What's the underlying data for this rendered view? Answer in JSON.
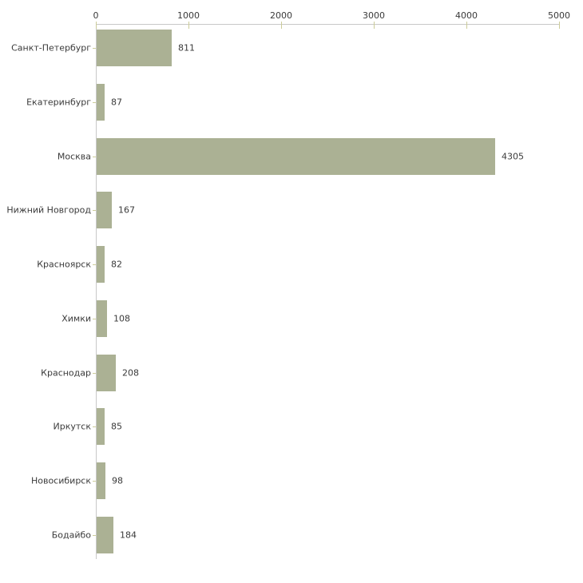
{
  "chart_data": {
    "type": "bar",
    "orientation": "horizontal",
    "title": "",
    "xlabel": "",
    "ylabel": "",
    "categories": [
      "Санкт-Петербург",
      "Екатеринбург",
      "Москва",
      "Нижний Новгород",
      "Красноярск",
      "Химки",
      "Краснодар",
      "Иркутск",
      "Новосибирск",
      "Бодайбо"
    ],
    "values": [
      811,
      87,
      4305,
      167,
      82,
      108,
      208,
      85,
      98,
      184
    ],
    "value_labels": [
      "811",
      "87",
      "4305",
      "167",
      "82",
      "108",
      "208",
      "85",
      "98",
      "184"
    ],
    "xlim": [
      0,
      5000
    ],
    "x_tick_values": [
      0,
      1000,
      2000,
      3000,
      4000,
      5000
    ],
    "x_tick_labels": [
      "0",
      "1000",
      "2000",
      "3000",
      "4000",
      "5000"
    ],
    "grid": false,
    "legend": "none",
    "value_labels_shown": true,
    "axis_position": "top",
    "colors": {
      "bar": "#ABB194",
      "axis_line": "#C8C8C8",
      "tick": "#CCCC99",
      "text": "#3A3A3A",
      "background": "#FFFFFF"
    }
  }
}
